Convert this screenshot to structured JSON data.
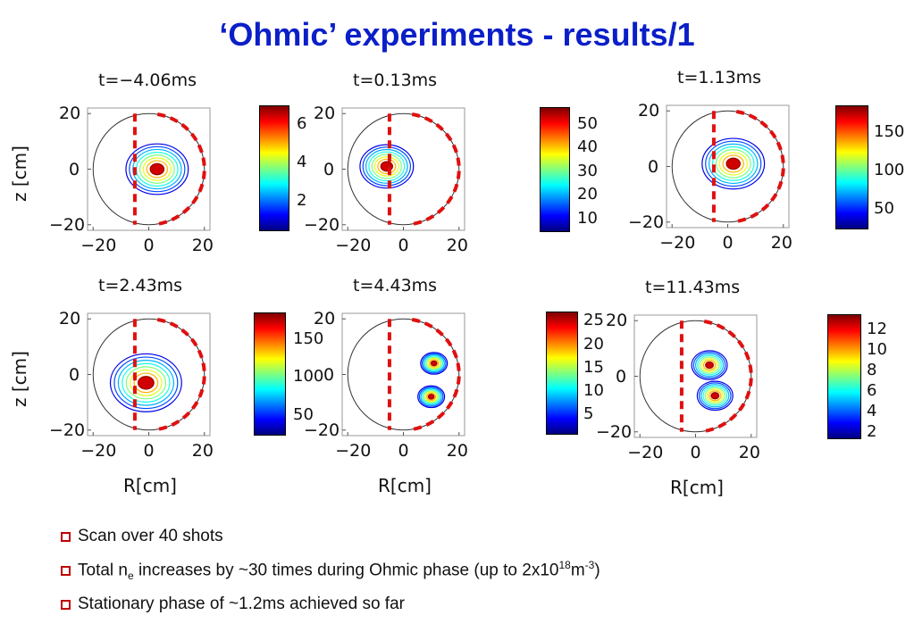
{
  "slide": {
    "title": "‘Ohmic’ experiments - results/1"
  },
  "colors": {
    "title": "#0b1fc8",
    "separatrix": "#e01010",
    "bullet_box": "#c00000"
  },
  "chart_data": [
    {
      "type": "heatmap",
      "title": "t=−4.06ms",
      "ylabel": "z  [cm]",
      "xlabel": "",
      "x_ticks": [
        "−20",
        "0",
        "20"
      ],
      "y_ticks": [
        "20",
        "0",
        "−20"
      ],
      "xlim": [
        -22,
        22
      ],
      "ylim": [
        -22,
        22
      ],
      "colorbar": {
        "ticks": [
          "6",
          "4",
          "2"
        ],
        "values": [
          6,
          4,
          2
        ],
        "range": [
          0.5,
          7
        ]
      },
      "blobs": [
        {
          "x": 3,
          "y": 0,
          "r": 7
        }
      ],
      "separatrix_x": -5
    },
    {
      "type": "heatmap",
      "title": "t=0.13ms",
      "ylabel": "",
      "xlabel": "",
      "x_ticks": [
        "−20",
        "0",
        "20"
      ],
      "y_ticks": [
        "20",
        "0",
        "−20"
      ],
      "xlim": [
        -22,
        22
      ],
      "ylim": [
        -22,
        22
      ],
      "colorbar": {
        "ticks": [
          "50",
          "40",
          "30",
          "20",
          "10"
        ],
        "values": [
          50,
          40,
          30,
          20,
          10
        ],
        "range": [
          5,
          57
        ]
      },
      "blobs": [
        {
          "x": -6,
          "y": 1,
          "r": 6
        }
      ],
      "separatrix_x": -5
    },
    {
      "type": "heatmap",
      "title": "t=1.13ms",
      "ylabel": "",
      "xlabel": "",
      "x_ticks": [
        "−20",
        "0",
        "20"
      ],
      "y_ticks": [
        "20",
        "0",
        "−20"
      ],
      "xlim": [
        -22,
        22
      ],
      "ylim": [
        -22,
        22
      ],
      "colorbar": {
        "ticks": [
          "150",
          "100",
          "50"
        ],
        "values": [
          150,
          100,
          50
        ],
        "range": [
          25,
          185
        ]
      },
      "blobs": [
        {
          "x": 2,
          "y": 1,
          "r": 7
        }
      ],
      "separatrix_x": -5
    },
    {
      "type": "heatmap",
      "title": "t=2.43ms",
      "ylabel": "z  [cm]",
      "xlabel": "R[cm]",
      "x_ticks": [
        "−20",
        "0",
        "20"
      ],
      "y_ticks": [
        "20",
        "0",
        "−20"
      ],
      "xlim": [
        -22,
        22
      ],
      "ylim": [
        -22,
        22
      ],
      "colorbar": {
        "ticks": [
          "150",
          "100",
          "50"
        ],
        "values": [
          150,
          100,
          50
        ],
        "range": [
          25,
          185
        ]
      },
      "blobs": [
        {
          "x": -1,
          "y": -3,
          "r": 8
        }
      ],
      "separatrix_x": -5
    },
    {
      "type": "heatmap",
      "title": "t=4.43ms",
      "ylabel": "",
      "xlabel": "R[cm]",
      "x_ticks": [
        "−20",
        "0",
        "20"
      ],
      "y_ticks": [
        "20",
        "0",
        "−20"
      ],
      "xlim": [
        -22,
        22
      ],
      "ylim": [
        -22,
        22
      ],
      "colorbar": {
        "ticks": [
          "25",
          "20",
          "15",
          "10",
          "5"
        ],
        "values": [
          25,
          20,
          15,
          10,
          5
        ],
        "range": [
          1,
          27
        ]
      },
      "blobs": [
        {
          "x": 10,
          "y": -8,
          "r": 3
        },
        {
          "x": 11,
          "y": 4,
          "r": 3
        }
      ],
      "separatrix_x": -5
    },
    {
      "type": "heatmap",
      "title": "t=11.43ms",
      "ylabel": "",
      "xlabel": "R[cm]",
      "x_ticks": [
        "−20",
        "0",
        "20"
      ],
      "y_ticks": [
        "20",
        "0",
        "−20"
      ],
      "xlim": [
        -22,
        22
      ],
      "ylim": [
        -22,
        22
      ],
      "colorbar": {
        "ticks": [
          "12",
          "10",
          "8",
          "6",
          "4",
          "2"
        ],
        "values": [
          12,
          10,
          8,
          6,
          4,
          2
        ],
        "range": [
          1.5,
          13.5
        ]
      },
      "blobs": [
        {
          "x": 5,
          "y": 4,
          "r": 4
        },
        {
          "x": 7,
          "y": -7,
          "r": 4
        }
      ],
      "separatrix_x": -5
    }
  ],
  "bullets": [
    {
      "text": "Scan over 40 shots"
    },
    {
      "pre": "Total n",
      "sub": "e",
      "mid": " increases by ~30 times during Ohmic phase (up to 2x10",
      "sup1": "18",
      "mid2": "m",
      "sup2": "-3",
      "post": ")"
    },
    {
      "text": "Stationary phase of ~1.2ms achieved so far"
    }
  ]
}
